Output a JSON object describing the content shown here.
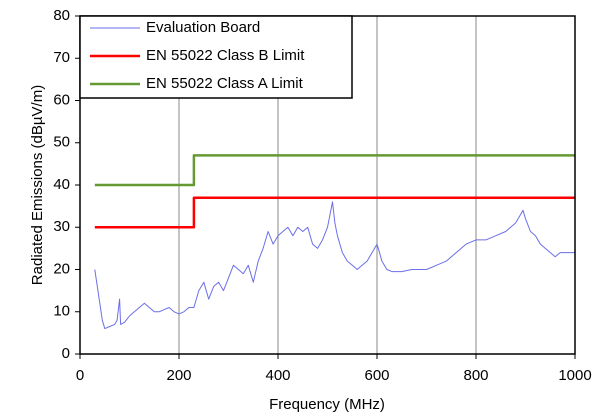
{
  "chart_data": {
    "type": "line",
    "xlabel": "Frequency (MHz)",
    "ylabel": "Radiated Emissions (dBµV/m)",
    "xlim": [
      0,
      1000
    ],
    "xticks": [
      0,
      200,
      400,
      600,
      800,
      1000
    ],
    "ylim": [
      0,
      80
    ],
    "yticks": [
      0,
      10,
      20,
      30,
      40,
      50,
      60,
      70,
      80
    ],
    "grid": "x",
    "legend": "upper left",
    "series": [
      {
        "name": "Evaluation Board",
        "color": "#6b6fe8",
        "x": [
          30,
          35,
          45,
          50,
          60,
          70,
          75,
          80,
          82,
          90,
          100,
          110,
          120,
          130,
          140,
          150,
          160,
          170,
          180,
          190,
          200,
          210,
          220,
          230,
          240,
          250,
          260,
          270,
          280,
          290,
          300,
          310,
          320,
          330,
          340,
          350,
          360,
          370,
          380,
          390,
          400,
          410,
          420,
          430,
          440,
          450,
          460,
          470,
          480,
          490,
          500,
          505,
          510,
          515,
          520,
          530,
          540,
          550,
          560,
          570,
          580,
          590,
          600,
          605,
          610,
          620,
          630,
          650,
          670,
          700,
          720,
          740,
          760,
          780,
          800,
          820,
          840,
          860,
          870,
          880,
          890,
          895,
          900,
          910,
          920,
          930,
          940,
          950,
          960,
          970,
          980,
          990,
          1000
        ],
        "values": [
          20,
          16,
          8,
          6,
          6.5,
          7,
          8,
          13,
          7,
          7.5,
          9,
          10,
          11,
          12,
          11,
          10,
          10,
          10.5,
          11,
          10,
          9.5,
          10,
          11,
          11,
          15,
          17,
          13,
          16,
          17,
          15,
          18,
          21,
          20,
          19,
          21,
          17,
          22,
          25,
          29,
          26,
          28,
          29,
          30,
          28,
          30,
          29,
          30,
          26,
          25,
          27,
          30,
          33,
          36,
          31,
          28,
          24,
          22,
          21,
          20,
          21,
          22,
          24,
          26,
          24,
          22,
          20,
          19.5,
          19.5,
          20,
          20,
          21,
          22,
          24,
          26,
          27,
          27,
          28,
          29,
          30,
          31,
          33,
          34,
          32,
          29,
          28,
          26,
          25,
          24,
          23,
          24,
          24,
          24,
          24
        ]
      },
      {
        "name": "EN 55022 Class B Limit",
        "color": "#ff0000",
        "x": [
          30,
          230,
          230,
          1000
        ],
        "values": [
          30,
          30,
          37,
          37
        ]
      },
      {
        "name": "EN 55022 Class A Limit",
        "color": "#669933",
        "x": [
          30,
          230,
          230,
          1000
        ],
        "values": [
          40,
          40,
          47,
          47
        ]
      }
    ]
  }
}
